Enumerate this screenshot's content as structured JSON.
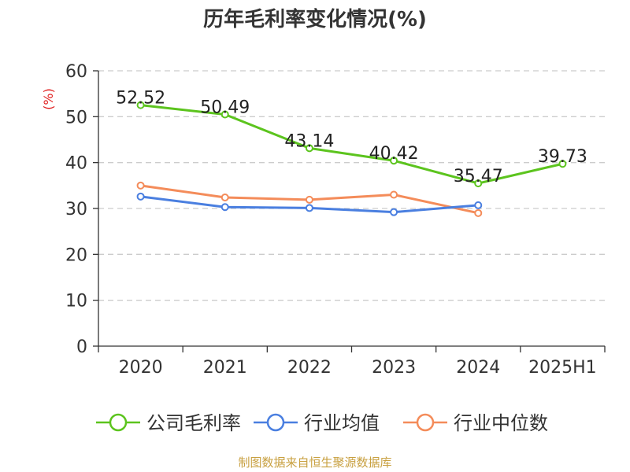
{
  "chart_data": {
    "type": "line",
    "title": "历年毛利率变化情况(%)",
    "ylabel": "(%)",
    "xlabel": "",
    "categories": [
      "2020",
      "2021",
      "2022",
      "2023",
      "2024",
      "2025H1"
    ],
    "ylim": [
      0,
      60
    ],
    "yticks": [
      "0",
      "10",
      "20",
      "30",
      "40",
      "50",
      "60"
    ],
    "grid": true,
    "legend_position": "bottom",
    "series": [
      {
        "name": "公司毛利率",
        "color": "#5cc41e",
        "values": [
          52.52,
          50.49,
          43.14,
          40.42,
          35.47,
          39.73
        ],
        "data_labels": [
          "52.52",
          "50.49",
          "43.14",
          "40.42",
          "35.47",
          "39.73"
        ]
      },
      {
        "name": "行业均值",
        "color": "#4a7fe0",
        "values": [
          32.6,
          30.3,
          30.1,
          29.2,
          30.7,
          null
        ]
      },
      {
        "name": "行业中位数",
        "color": "#f48c5a",
        "values": [
          35.0,
          32.4,
          31.9,
          33.0,
          29.0,
          null
        ]
      }
    ]
  },
  "footer": {
    "source": "制图数据来自恒生聚源数据库"
  }
}
